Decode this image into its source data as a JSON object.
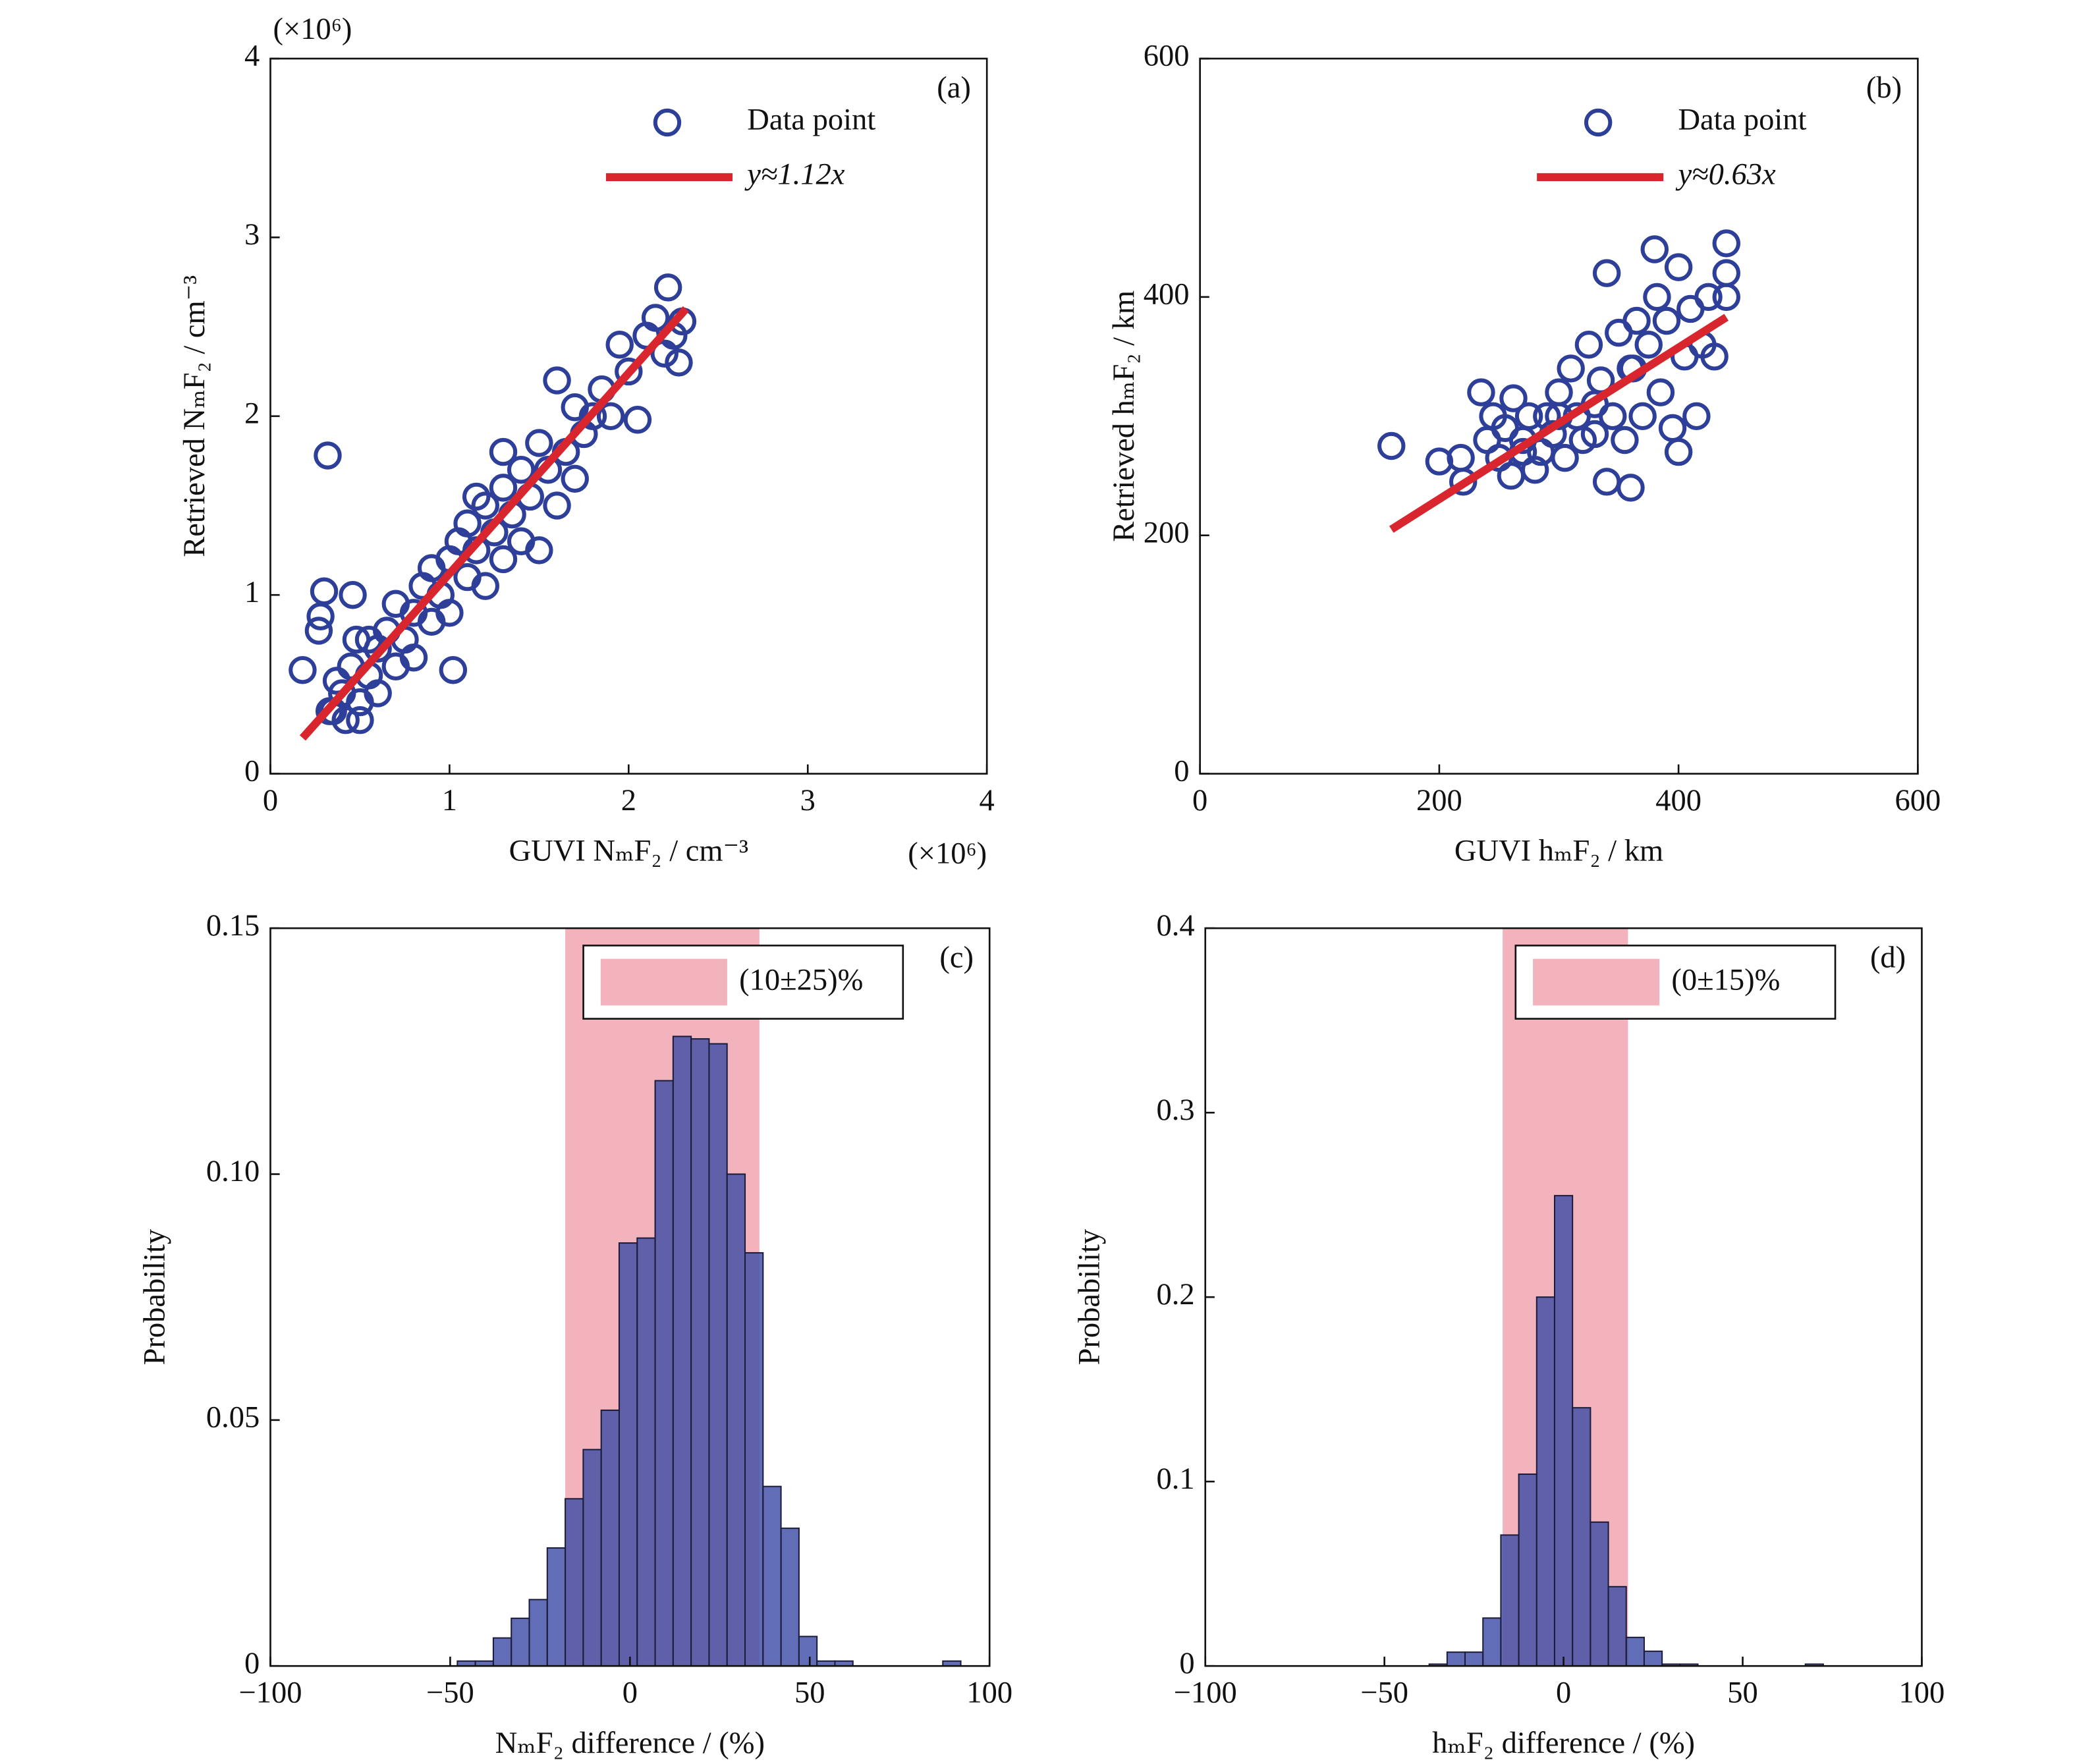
{
  "chart_data": [
    {
      "type": "scatter",
      "panel_label": "(a)",
      "xlabel": "GUVI NₘF₂ / cm⁻³",
      "ylabel": "Retrieved NₘF₂ / cm⁻³",
      "x_multiplier": "(×10⁶)",
      "y_multiplier": "(×10⁶)",
      "xlim": [
        0,
        4
      ],
      "ylim": [
        0,
        4
      ],
      "xticks": [
        0,
        1,
        2,
        3,
        4
      ],
      "yticks": [
        0,
        1,
        2,
        3,
        4
      ],
      "series": [
        {
          "name": "Data point",
          "color": "#2e3f9a",
          "style": "marker",
          "x": [
            0.18,
            0.32,
            0.3,
            0.28,
            0.27,
            0.46,
            0.37,
            1.02,
            0.33,
            0.42,
            0.5,
            0.4,
            0.45,
            0.48,
            0.5,
            0.55,
            0.6,
            0.6,
            0.65,
            0.7,
            0.7,
            0.75,
            0.8,
            0.8,
            0.85,
            0.9,
            0.9,
            0.95,
            1.0,
            1.0,
            1.05,
            1.1,
            1.1,
            1.15,
            1.2,
            1.2,
            1.25,
            1.3,
            1.3,
            1.35,
            1.4,
            1.4,
            1.45,
            1.5,
            1.5,
            1.55,
            1.6,
            1.6,
            1.65,
            1.7,
            1.7,
            1.75,
            1.8,
            1.85,
            1.9,
            1.95,
            2.0,
            2.05,
            2.1,
            2.15,
            2.2,
            2.22,
            2.25,
            2.3,
            2.28,
            1.3,
            1.15,
            0.55,
            0.35
          ],
          "values": [
            0.58,
            1.78,
            1.02,
            0.88,
            0.8,
            1.0,
            0.52,
            0.58,
            0.35,
            0.3,
            0.3,
            0.45,
            0.6,
            0.75,
            0.4,
            0.55,
            0.7,
            0.45,
            0.8,
            0.6,
            0.95,
            0.75,
            0.9,
            0.65,
            1.05,
            0.85,
            1.15,
            1.0,
            1.2,
            0.9,
            1.3,
            1.1,
            1.4,
            1.25,
            1.5,
            1.05,
            1.35,
            1.6,
            1.2,
            1.45,
            1.7,
            1.3,
            1.55,
            1.85,
            1.25,
            1.7,
            2.2,
            1.5,
            1.8,
            2.05,
            1.65,
            1.9,
            2.0,
            2.15,
            2.0,
            2.4,
            2.25,
            1.98,
            2.45,
            2.55,
            2.35,
            2.72,
            2.45,
            2.53,
            2.3,
            1.8,
            1.55,
            0.75,
            0.35
          ]
        },
        {
          "name": "y≈1.12x",
          "color": "#d9262e",
          "style": "line",
          "x": [
            0.18,
            2.32
          ],
          "values": [
            0.2,
            2.6
          ]
        }
      ]
    },
    {
      "type": "scatter",
      "panel_label": "(b)",
      "xlabel": "GUVI hₘF₂ / km",
      "ylabel": "Retrieved hₘF₂ / km",
      "xlim": [
        0,
        600
      ],
      "ylim": [
        0,
        600
      ],
      "xticks": [
        0,
        200,
        400,
        600
      ],
      "yticks": [
        0,
        200,
        400,
        600
      ],
      "series": [
        {
          "name": "Data point",
          "color": "#2e3f9a",
          "style": "marker",
          "x": [
            160,
            200,
            218,
            220,
            235,
            240,
            245,
            250,
            255,
            260,
            262,
            270,
            275,
            280,
            285,
            290,
            295,
            300,
            305,
            310,
            315,
            320,
            325,
            330,
            335,
            340,
            340,
            345,
            350,
            355,
            360,
            362,
            365,
            370,
            375,
            380,
            382,
            385,
            390,
            395,
            400,
            400,
            405,
            410,
            415,
            420,
            425,
            430,
            440,
            440,
            440,
            360,
            330,
            300,
            270
          ],
          "values": [
            275,
            262,
            265,
            245,
            320,
            280,
            300,
            265,
            290,
            250,
            315,
            280,
            300,
            255,
            270,
            300,
            285,
            320,
            265,
            340,
            300,
            280,
            360,
            310,
            330,
            420,
            245,
            300,
            370,
            280,
            240,
            340,
            380,
            300,
            360,
            440,
            400,
            320,
            380,
            290,
            425,
            270,
            350,
            390,
            300,
            360,
            400,
            350,
            445,
            420,
            400,
            340,
            285,
            300,
            270
          ]
        },
        {
          "name": "y≈0.63x",
          "color": "#d9262e",
          "style": "line",
          "x": [
            160,
            440
          ],
          "values": [
            205,
            383
          ]
        }
      ]
    },
    {
      "type": "histogram",
      "panel_label": "(c)",
      "xlabel": "NₘF₂ difference / (%)",
      "ylabel": "Probability",
      "xlim": [
        -100,
        100
      ],
      "ylim": [
        0,
        0.15
      ],
      "xticks": [
        {
          "value": -100,
          "label": "−100"
        },
        {
          "value": -50,
          "label": "−50"
        },
        0,
        50,
        100
      ],
      "yticks": [
        0,
        0.05,
        {
          "value": 0.1,
          "label": "0.10"
        },
        0.15
      ],
      "color": "#3e4da6",
      "band": {
        "name": "(10±25)%",
        "range": [
          -18,
          36
        ],
        "color": "#f2b3bd"
      },
      "bins": [
        -48,
        -43,
        -38,
        -33,
        -28,
        -23,
        -18,
        -13,
        -8,
        -3,
        2,
        7,
        12,
        17,
        22,
        27,
        32,
        37,
        42,
        47,
        52,
        57,
        62,
        67,
        72,
        77,
        82,
        87,
        92
      ],
      "values": [
        0.001,
        0.001,
        0.0057,
        0.0097,
        0.0135,
        0.024,
        0.034,
        0.044,
        0.052,
        0.086,
        0.087,
        0.119,
        0.128,
        0.1275,
        0.1265,
        0.1,
        0.084,
        0.0365,
        0.028,
        0.006,
        0.001,
        0.001,
        0,
        0,
        0,
        0,
        0,
        0.001
      ]
    },
    {
      "type": "histogram",
      "panel_label": "(d)",
      "xlabel": "hₘF₂ difference / (%)",
      "ylabel": "Probability",
      "xlim": [
        -100,
        100
      ],
      "ylim": [
        0,
        0.4
      ],
      "xticks": [
        {
          "value": -100,
          "label": "−100"
        },
        {
          "value": -50,
          "label": "−50"
        },
        0,
        50,
        100
      ],
      "yticks": [
        0,
        0.1,
        0.2,
        0.3,
        0.4
      ],
      "color": "#3e4da6",
      "band": {
        "name": "(0±15)%",
        "range": [
          -17,
          18
        ],
        "color": "#f2b3bd"
      },
      "bins": [
        -37.5,
        -32.5,
        -27.5,
        -22.5,
        -17.5,
        -12.5,
        -7.5,
        -2.5,
        2.5,
        7.5,
        12.5,
        17.5,
        22.5,
        27.5,
        32.5,
        37.5,
        42.5,
        47.5,
        52.5,
        57.5,
        62.5,
        67.5,
        72.5
      ],
      "values": [
        0.001,
        0.0075,
        0.0075,
        0.026,
        0.071,
        0.104,
        0.2,
        0.255,
        0.14,
        0.078,
        0.043,
        0.0155,
        0.008,
        0.001,
        0.001,
        0,
        0,
        0,
        0,
        0,
        0,
        0.001
      ]
    }
  ]
}
